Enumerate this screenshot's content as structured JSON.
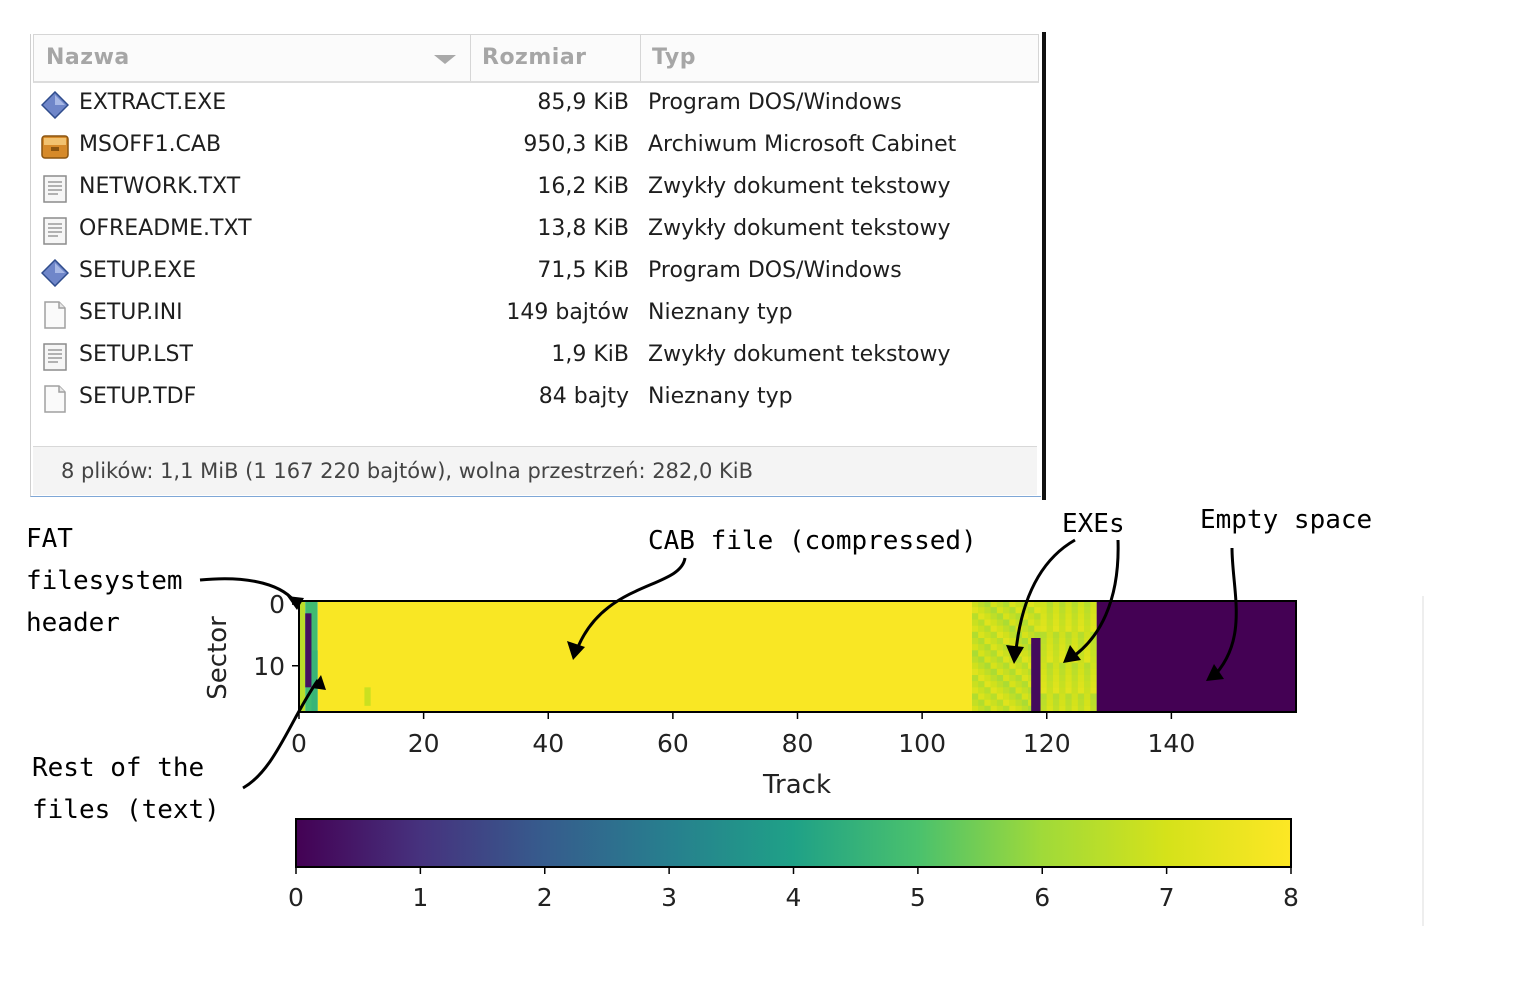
{
  "file_manager": {
    "columns": {
      "name": "Nazwa",
      "size": "Rozmiar",
      "type": "Typ"
    },
    "rows": [
      {
        "icon": "executable-icon",
        "name": "EXTRACT.EXE",
        "size": "85,9 KiB",
        "type": "Program DOS/Windows"
      },
      {
        "icon": "archive-icon",
        "name": "MSOFF1.CAB",
        "size": "950,3 KiB",
        "type": "Archiwum Microsoft Cabinet"
      },
      {
        "icon": "text-document-icon",
        "name": "NETWORK.TXT",
        "size": "16,2 KiB",
        "type": "Zwykły dokument tekstowy"
      },
      {
        "icon": "text-document-icon",
        "name": "OFREADME.TXT",
        "size": "13,8 KiB",
        "type": "Zwykły dokument tekstowy"
      },
      {
        "icon": "executable-icon",
        "name": "SETUP.EXE",
        "size": "71,5 KiB",
        "type": "Program DOS/Windows"
      },
      {
        "icon": "blank-file-icon",
        "name": "SETUP.INI",
        "size": "149 bajtów",
        "type": "Nieznany typ"
      },
      {
        "icon": "text-document-icon",
        "name": "SETUP.LST",
        "size": "1,9 KiB",
        "type": "Zwykły dokument tekstowy"
      },
      {
        "icon": "blank-file-icon",
        "name": "SETUP.TDF",
        "size": "84 bajty",
        "type": "Nieznany typ"
      }
    ],
    "status": "8 plików: 1,1 MiB (1 167 220 bajtów), wolna przestrzeń: 282,0 KiB"
  },
  "annotations": {
    "fat_header": "FAT\nfilesystem\nheader",
    "cab_file": "CAB file (compressed)",
    "exes": "EXEs",
    "empty_space": "Empty space",
    "rest_files": "Rest of the\nfiles (text)"
  },
  "chart_data": {
    "type": "heatmap",
    "xlabel": "Track",
    "ylabel": "Sector",
    "x_range": [
      0,
      160
    ],
    "y_range": [
      0,
      18
    ],
    "x_ticks": [
      0,
      20,
      40,
      60,
      80,
      100,
      120,
      140
    ],
    "y_ticks": [
      0,
      10
    ],
    "colormap": "viridis",
    "colorbar": {
      "min": 0,
      "max": 8,
      "ticks": [
        0,
        1,
        2,
        3,
        4,
        5,
        6,
        7,
        8
      ]
    },
    "regions": [
      {
        "label": "FAT filesystem header",
        "tracks": [
          0,
          1
        ],
        "value": 6.5
      },
      {
        "label": "Rest of the files (text)",
        "tracks": [
          1,
          3
        ],
        "value": 4.8
      },
      {
        "label": "CAB file (compressed)",
        "tracks": [
          3,
          108
        ],
        "value": 7.9
      },
      {
        "label": "EXEs",
        "tracks": [
          108,
          119
        ],
        "value": 6.6
      },
      {
        "label": "EXEs",
        "tracks": [
          119,
          128
        ],
        "value": 6.8
      },
      {
        "label": "Empty space",
        "tracks": [
          128,
          160
        ],
        "value": 0
      }
    ],
    "colors": {
      "empty": "#440154",
      "cab": "#f2e21f",
      "exe": "#8fd64a",
      "exe_light": "#b5de2b",
      "text": "#35b779",
      "mid": "#21908d"
    }
  }
}
